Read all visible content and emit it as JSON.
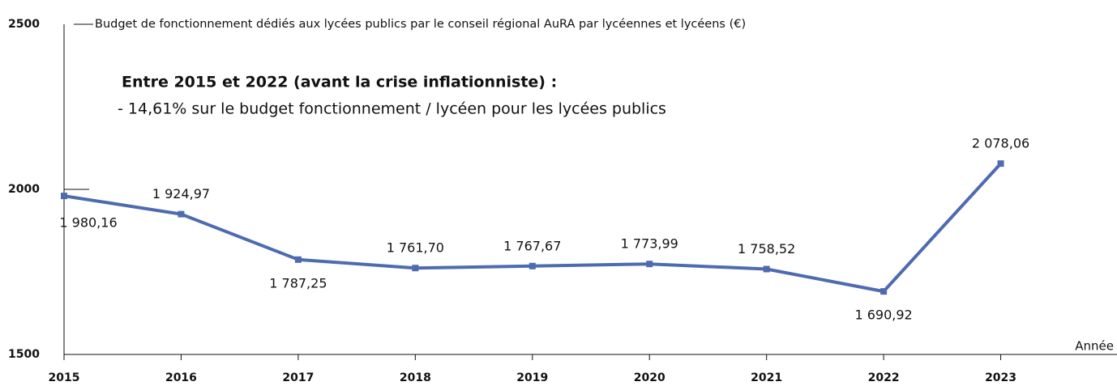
{
  "chart_data": {
    "type": "line",
    "title": "Budget de fonctionnement dédiés aux lycées publics par le conseil régional AuRA par lycéennes et lycéens (€)",
    "annotations": [
      "Entre 2015 et 2022 (avant la crise inflationniste) :",
      "- 14,61% sur le budget fonctionnement / lycéen pour les lycées publics"
    ],
    "x_label": "Année",
    "x": [
      2015,
      2016,
      2017,
      2018,
      2019,
      2020,
      2021,
      2022,
      2023
    ],
    "series": [
      {
        "name": "Budget",
        "color": "#4e6bb0",
        "values": [
          1980.16,
          1924.97,
          1787.25,
          1761.7,
          1767.67,
          1773.99,
          1758.52,
          1690.92,
          2078.06
        ],
        "value_labels": [
          "1 980,16",
          "1 924,97",
          "1 787,25",
          "1 761,70",
          "1 767,67",
          "1 773,99",
          "1 758,52",
          "1 690,92",
          "2 078,06"
        ]
      }
    ],
    "xlim": [
      2015,
      2024
    ],
    "xticks": [
      2015,
      2016,
      2017,
      2018,
      2019,
      2020,
      2021,
      2022,
      2023
    ],
    "ylim": [
      1500,
      2500
    ],
    "yticks": [
      1500,
      2000,
      2500
    ],
    "grid": false
  }
}
